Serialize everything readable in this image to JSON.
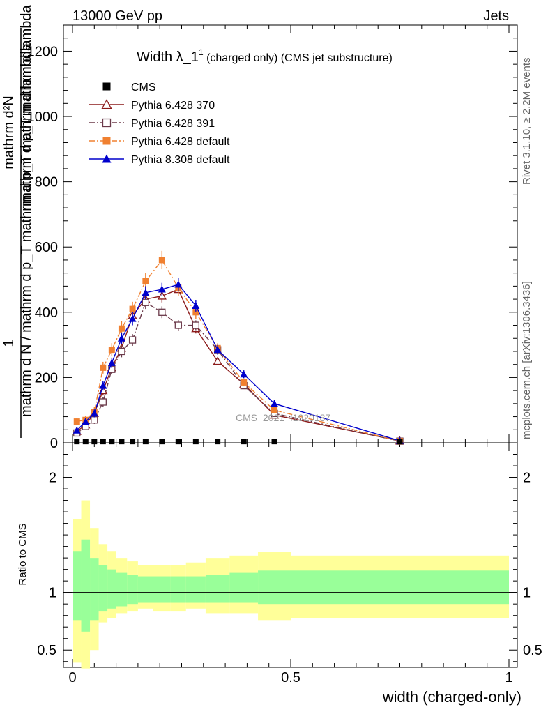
{
  "header": {
    "left": "13000 GeV pp",
    "right": "Jets"
  },
  "side_labels": {
    "rivet": "Rivet 3.1.10, ≥ 2.2M events",
    "mcplots": "mcplots.cern.ch [arXiv:1306.3436]"
  },
  "title": {
    "main": "Width λ_1",
    "sup": "1",
    "sub": " (charged only) (CMS jet substructure)"
  },
  "ylabel": {
    "numerator": "1",
    "denominator": "mathrm d N / mathrm d p_T mathrm d p_T mathrm d lambda",
    "right_fraction_num": "mathrm d²N",
    "right_fraction_den": "mathrm d p_T mathrm d lambda"
  },
  "watermark": "CMS_2021_I1920187",
  "ratio_ylabel": "Ratio to CMS",
  "xlabel": "width (charged-only)",
  "legend": [
    {
      "name": "CMS",
      "color": "#000000",
      "marker": "filled-square",
      "line": "none"
    },
    {
      "name": "Pythia 6.428 370",
      "color": "#8b1a1a",
      "marker": "open-triangle",
      "line": "solid"
    },
    {
      "name": "Pythia 6.428 391",
      "color": "#6b3a4a",
      "marker": "open-square",
      "line": "dashdot"
    },
    {
      "name": "Pythia 6.428 default",
      "color": "#f08030",
      "marker": "filled-square",
      "line": "dashdot"
    },
    {
      "name": "Pythia 8.308 default",
      "color": "#0000cc",
      "marker": "filled-triangle",
      "line": "solid"
    }
  ],
  "chart_data": {
    "type": "line",
    "title": "Width λ_1^1 (charged only) (CMS jet substructure)",
    "xlabel": "width (charged-only)",
    "xlim": [
      -0.02,
      1.0
    ],
    "ylim": [
      0,
      1280
    ],
    "x_ticks": [
      0,
      0.5,
      1
    ],
    "x_tick_labels": [
      "0",
      "0.5",
      "1"
    ],
    "y_ticks": [
      0,
      200,
      400,
      600,
      800,
      1000,
      1200
    ],
    "y_tick_labels": [
      "0",
      "200",
      "400",
      "600",
      "800",
      "1000",
      "1200"
    ],
    "bin_edges": [
      0.0,
      0.02,
      0.04,
      0.06,
      0.08,
      0.1,
      0.125,
      0.15,
      0.185,
      0.225,
      0.26,
      0.305,
      0.36,
      0.425,
      0.5,
      1.0
    ],
    "x": [
      0.01,
      0.03,
      0.05,
      0.07,
      0.09,
      0.1125,
      0.1375,
      0.1675,
      0.205,
      0.2425,
      0.2825,
      0.3325,
      0.3925,
      0.4625,
      0.75
    ],
    "series": [
      {
        "name": "CMS",
        "values": [
          4,
          4,
          4,
          4,
          4,
          4,
          4,
          4,
          4,
          4,
          4,
          4,
          4,
          4,
          4
        ],
        "errors": [
          0,
          0,
          0,
          0,
          0,
          0,
          0,
          0,
          0,
          0,
          0,
          0,
          0,
          0,
          0
        ]
      },
      {
        "name": "Pythia 6.428 370",
        "values": [
          35,
          55,
          90,
          160,
          230,
          290,
          390,
          440,
          450,
          470,
          350,
          250,
          180,
          85,
          6
        ],
        "errors": [
          8,
          10,
          12,
          15,
          15,
          18,
          20,
          20,
          20,
          18,
          15,
          12,
          10,
          8,
          3
        ]
      },
      {
        "name": "Pythia 6.428 391",
        "values": [
          30,
          50,
          70,
          125,
          225,
          280,
          315,
          430,
          400,
          360,
          360,
          285,
          175,
          90,
          5
        ],
        "errors": [
          8,
          10,
          12,
          15,
          15,
          18,
          18,
          20,
          18,
          16,
          15,
          12,
          10,
          8,
          3
        ]
      },
      {
        "name": "Pythia 6.428 default",
        "values": [
          65,
          70,
          95,
          230,
          285,
          350,
          410,
          495,
          560,
          475,
          400,
          290,
          185,
          100,
          5
        ],
        "errors": [
          10,
          12,
          14,
          18,
          20,
          22,
          22,
          25,
          28,
          25,
          20,
          15,
          12,
          10,
          3
        ]
      },
      {
        "name": "Pythia 8.308 default",
        "values": [
          38,
          65,
          90,
          175,
          245,
          320,
          380,
          460,
          470,
          485,
          420,
          285,
          210,
          120,
          6
        ],
        "errors": [
          8,
          10,
          12,
          15,
          16,
          18,
          20,
          20,
          20,
          20,
          18,
          15,
          12,
          10,
          3
        ]
      }
    ],
    "ratio": {
      "ylabel": "Ratio to CMS",
      "ylim": [
        0.35,
        2.3
      ],
      "y_ticks": [
        0.5,
        1,
        2
      ],
      "y_tick_labels": [
        "0.5",
        "1",
        "2"
      ],
      "band_lower_stat": [
        0.76,
        0.66,
        0.76,
        0.84,
        0.86,
        0.88,
        0.9,
        0.91,
        0.91,
        0.91,
        0.91,
        0.91,
        0.91,
        0.9,
        0.9
      ],
      "band_upper_stat": [
        1.36,
        1.46,
        1.3,
        1.24,
        1.2,
        1.17,
        1.15,
        1.14,
        1.14,
        1.14,
        1.14,
        1.15,
        1.17,
        1.19,
        1.19
      ],
      "band_lower_syst": [
        0.39,
        0.34,
        0.5,
        0.74,
        0.78,
        0.82,
        0.84,
        0.86,
        0.84,
        0.84,
        0.86,
        0.82,
        0.82,
        0.76,
        0.78
      ],
      "band_upper_syst": [
        1.64,
        1.8,
        1.56,
        1.42,
        1.36,
        1.3,
        1.27,
        1.24,
        1.24,
        1.24,
        1.26,
        1.3,
        1.32,
        1.35,
        1.32
      ]
    }
  }
}
